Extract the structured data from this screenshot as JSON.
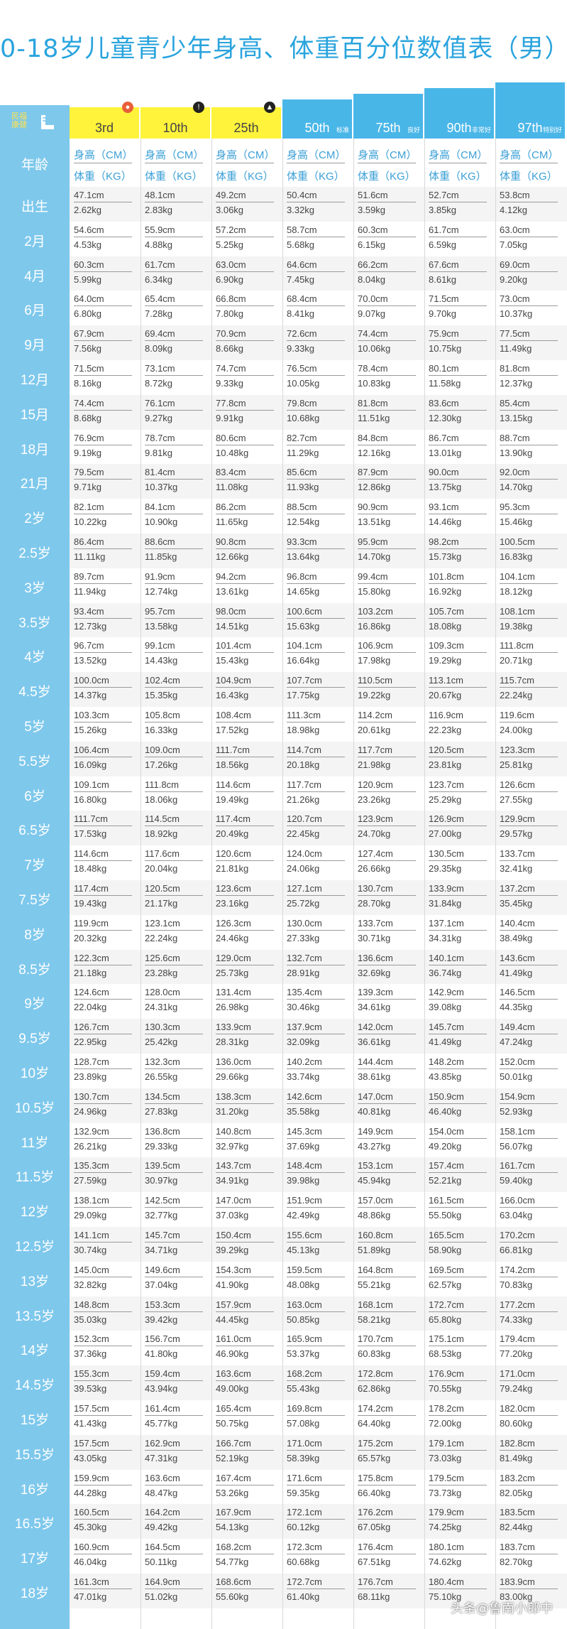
{
  "title": "0-18岁儿童青少年身高、体重百分位数值表（男）",
  "logo_text": [
    "民福",
    "康健"
  ],
  "columns": [
    {
      "label": "3rd",
      "tag": "",
      "color": "#fff33b"
    },
    {
      "label": "10th",
      "tag": "",
      "color": "#fff33b"
    },
    {
      "label": "25th",
      "tag": "",
      "color": "#fff33b"
    },
    {
      "label": "50th",
      "tag": "标准",
      "color": "#49b6e8"
    },
    {
      "label": "75th",
      "tag": "良好",
      "color": "#49b6e8"
    },
    {
      "label": "90th",
      "tag": "非常好",
      "color": "#49b6e8"
    },
    {
      "label": "97th",
      "tag": "特别好",
      "color": "#49b6e8"
    }
  ],
  "age_header": "年龄",
  "unit_height": "身高（CM）",
  "unit_weight": "体重（KG）",
  "rows": [
    {
      "age": "出生",
      "h": [
        "47.1cm",
        "48.1cm",
        "49.2cm",
        "50.4cm",
        "51.6cm",
        "52.7cm",
        "53.8cm"
      ],
      "w": [
        "2.62kg",
        "2.83kg",
        "3.06kg",
        "3.32kg",
        "3.59kg",
        "3.85kg",
        "4.12kg"
      ]
    },
    {
      "age": "2月",
      "h": [
        "54.6cm",
        "55.9cm",
        "57.2cm",
        "58.7cm",
        "60.3cm",
        "61.7cm",
        "63.0cm"
      ],
      "w": [
        "4.53kg",
        "4.88kg",
        "5.25kg",
        "5.68kg",
        "6.15kg",
        "6.59kg",
        "7.05kg"
      ]
    },
    {
      "age": "4月",
      "h": [
        "60.3cm",
        "61.7cm",
        "63.0cm",
        "64.6cm",
        "66.2cm",
        "67.6cm",
        "69.0cm"
      ],
      "w": [
        "5.99kg",
        "6.34kg",
        "6.90kg",
        "7.45kg",
        "8.04kg",
        "8.61kg",
        "9.20kg"
      ]
    },
    {
      "age": "6月",
      "h": [
        "64.0cm",
        "65.4cm",
        "66.8cm",
        "68.4cm",
        "70.0cm",
        "71.5cm",
        "73.0cm"
      ],
      "w": [
        "6.80kg",
        "7.28kg",
        "7.80kg",
        "8.41kg",
        "9.07kg",
        "9.70kg",
        "10.37kg"
      ]
    },
    {
      "age": "9月",
      "h": [
        "67.9cm",
        "69.4cm",
        "70.9cm",
        "72.6cm",
        "74.4cm",
        "75.9cm",
        "77.5cm"
      ],
      "w": [
        "7.56kg",
        "8.09kg",
        "8.66kg",
        "9.33kg",
        "10.06kg",
        "10.75kg",
        "11.49kg"
      ]
    },
    {
      "age": "12月",
      "h": [
        "71.5cm",
        "73.1cm",
        "74.7cm",
        "76.5cm",
        "78.4cm",
        "80.1cm",
        "81.8cm"
      ],
      "w": [
        "8.16kg",
        "8.72kg",
        "9.33kg",
        "10.05kg",
        "10.83kg",
        "11.58kg",
        "12.37kg"
      ]
    },
    {
      "age": "15月",
      "h": [
        "74.4cm",
        "76.1cm",
        "77.8cm",
        "79.8cm",
        "81.8cm",
        "83.6cm",
        "85.4cm"
      ],
      "w": [
        "8.68kg",
        "9.27kg",
        "9.91kg",
        "10.68kg",
        "11.51kg",
        "12.30kg",
        "13.15kg"
      ]
    },
    {
      "age": "18月",
      "h": [
        "76.9cm",
        "78.7cm",
        "80.6cm",
        "82.7cm",
        "84.8cm",
        "86.7cm",
        "88.7cm"
      ],
      "w": [
        "9.19kg",
        "9.81kg",
        "10.48kg",
        "11.29kg",
        "12.16kg",
        "13.01kg",
        "13.90kg"
      ]
    },
    {
      "age": "21月",
      "h": [
        "79.5cm",
        "81.4cm",
        "83.4cm",
        "85.6cm",
        "87.9cm",
        "90.0cm",
        "92.0cm"
      ],
      "w": [
        "9.71kg",
        "10.37kg",
        "11.08kg",
        "11.93kg",
        "12.86kg",
        "13.75kg",
        "14.70kg"
      ]
    },
    {
      "age": "2岁",
      "h": [
        "82.1cm",
        "84.1cm",
        "86.2cm",
        "88.5cm",
        "90.9cm",
        "93.1cm",
        "95.3cm"
      ],
      "w": [
        "10.22kg",
        "10.90kg",
        "11.65kg",
        "12.54kg",
        "13.51kg",
        "14.46kg",
        "15.46kg"
      ]
    },
    {
      "age": "2.5岁",
      "h": [
        "86.4cm",
        "88.6cm",
        "90.8cm",
        "93.3cm",
        "95.9cm",
        "98.2cm",
        "100.5cm"
      ],
      "w": [
        "11.11kg",
        "11.85kg",
        "12.66kg",
        "13.64kg",
        "14.70kg",
        "15.73kg",
        "16.83kg"
      ]
    },
    {
      "age": "3岁",
      "h": [
        "89.7cm",
        "91.9cm",
        "94.2cm",
        "96.8cm",
        "99.4cm",
        "101.8cm",
        "104.1cm"
      ],
      "w": [
        "11.94kg",
        "12.74kg",
        "13.61kg",
        "14.65kg",
        "15.80kg",
        "16.92kg",
        "18.12kg"
      ]
    },
    {
      "age": "3.5岁",
      "h": [
        "93.4cm",
        "95.7cm",
        "98.0cm",
        "100.6cm",
        "103.2cm",
        "105.7cm",
        "108.1cm"
      ],
      "w": [
        "12.73kg",
        "13.58kg",
        "14.51kg",
        "15.63kg",
        "16.86kg",
        "18.08kg",
        "19.38kg"
      ]
    },
    {
      "age": "4岁",
      "h": [
        "96.7cm",
        "99.1cm",
        "101.4cm",
        "104.1cm",
        "106.9cm",
        "109.3cm",
        "111.8cm"
      ],
      "w": [
        "13.52kg",
        "14.43kg",
        "15.43kg",
        "16.64kg",
        "17.98kg",
        "19.29kg",
        "20.71kg"
      ]
    },
    {
      "age": "4.5岁",
      "h": [
        "100.0cm",
        "102.4cm",
        "104.9cm",
        "107.7cm",
        "110.5cm",
        "113.1cm",
        "115.7cm"
      ],
      "w": [
        "14.37kg",
        "15.35kg",
        "16.43kg",
        "17.75kg",
        "19.22kg",
        "20.67kg",
        "22.24kg"
      ]
    },
    {
      "age": "5岁",
      "h": [
        "103.3cm",
        "105.8cm",
        "108.4cm",
        "111.3cm",
        "114.2cm",
        "116.9cm",
        "119.6cm"
      ],
      "w": [
        "15.26kg",
        "16.33kg",
        "17.52kg",
        "18.98kg",
        "20.61kg",
        "22.23kg",
        "24.00kg"
      ]
    },
    {
      "age": "5.5岁",
      "h": [
        "106.4cm",
        "109.0cm",
        "111.7cm",
        "114.7cm",
        "117.7cm",
        "120.5cm",
        "123.3cm"
      ],
      "w": [
        "16.09kg",
        "17.26kg",
        "18.56kg",
        "20.18kg",
        "21.98kg",
        "23.81kg",
        "25.81kg"
      ]
    },
    {
      "age": "6岁",
      "h": [
        "109.1cm",
        "111.8cm",
        "114.6cm",
        "117.7cm",
        "120.9cm",
        "123.7cm",
        "126.6cm"
      ],
      "w": [
        "16.80kg",
        "18.06kg",
        "19.49kg",
        "21.26kg",
        "23.26kg",
        "25.29kg",
        "27.55kg"
      ]
    },
    {
      "age": "6.5岁",
      "h": [
        "111.7cm",
        "114.5cm",
        "117.4cm",
        "120.7cm",
        "123.9cm",
        "126.9cm",
        "129.9cm"
      ],
      "w": [
        "17.53kg",
        "18.92kg",
        "20.49kg",
        "22.45kg",
        "24.70kg",
        "27.00kg",
        "29.57kg"
      ]
    },
    {
      "age": "7岁",
      "h": [
        "114.6cm",
        "117.6cm",
        "120.6cm",
        "124.0cm",
        "127.4cm",
        "130.5cm",
        "133.7cm"
      ],
      "w": [
        "18.48kg",
        "20.04kg",
        "21.81kg",
        "24.06kg",
        "26.66kg",
        "29.35kg",
        "32.41kg"
      ]
    },
    {
      "age": "7.5岁",
      "h": [
        "117.4cm",
        "120.5cm",
        "123.6cm",
        "127.1cm",
        "130.7cm",
        "133.9cm",
        "137.2cm"
      ],
      "w": [
        "19.43kg",
        "21.17kg",
        "23.16kg",
        "25.72kg",
        "28.70kg",
        "31.84kg",
        "35.45kg"
      ]
    },
    {
      "age": "8岁",
      "h": [
        "119.9cm",
        "123.1cm",
        "126.3cm",
        "130.0cm",
        "133.7cm",
        "137.1cm",
        "140.4cm"
      ],
      "w": [
        "20.32kg",
        "22.24kg",
        "24.46kg",
        "27.33kg",
        "30.71kg",
        "34.31kg",
        "38.49kg"
      ]
    },
    {
      "age": "8.5岁",
      "h": [
        "122.3cm",
        "125.6cm",
        "129.0cm",
        "132.7cm",
        "136.6cm",
        "140.1cm",
        "143.6cm"
      ],
      "w": [
        "21.18kg",
        "23.28kg",
        "25.73kg",
        "28.91kg",
        "32.69kg",
        "36.74kg",
        "41.49kg"
      ]
    },
    {
      "age": "9岁",
      "h": [
        "124.6cm",
        "128.0cm",
        "131.4cm",
        "135.4cm",
        "139.3cm",
        "142.9cm",
        "146.5cm"
      ],
      "w": [
        "22.04kg",
        "24.31kg",
        "26.98kg",
        "30.46kg",
        "34.61kg",
        "39.08kg",
        "44.35kg"
      ]
    },
    {
      "age": "9.5岁",
      "h": [
        "126.7cm",
        "130.3cm",
        "133.9cm",
        "137.9cm",
        "142.0cm",
        "145.7cm",
        "149.4cm"
      ],
      "w": [
        "22.95kg",
        "25.42kg",
        "28.31kg",
        "32.09kg",
        "36.61kg",
        "41.49kg",
        "47.24kg"
      ]
    },
    {
      "age": "10岁",
      "h": [
        "128.7cm",
        "132.3cm",
        "136.0cm",
        "140.2cm",
        "144.4cm",
        "148.2cm",
        "152.0cm"
      ],
      "w": [
        "23.89kg",
        "26.55kg",
        "29.66kg",
        "33.74kg",
        "38.61kg",
        "43.85kg",
        "50.01kg"
      ]
    },
    {
      "age": "10.5岁",
      "h": [
        "130.7cm",
        "134.5cm",
        "138.3cm",
        "142.6cm",
        "147.0cm",
        "150.9cm",
        "154.9cm"
      ],
      "w": [
        "24.96kg",
        "27.83kg",
        "31.20kg",
        "35.58kg",
        "40.81kg",
        "46.40kg",
        "52.93kg"
      ]
    },
    {
      "age": "11岁",
      "h": [
        "132.9cm",
        "136.8cm",
        "140.8cm",
        "145.3cm",
        "149.9cm",
        "154.0cm",
        "158.1cm"
      ],
      "w": [
        "26.21kg",
        "29.33kg",
        "32.97kg",
        "37.69kg",
        "43.27kg",
        "49.20kg",
        "56.07kg"
      ]
    },
    {
      "age": "11.5岁",
      "h": [
        "135.3cm",
        "139.5cm",
        "143.7cm",
        "148.4cm",
        "153.1cm",
        "157.4cm",
        "161.7cm"
      ],
      "w": [
        "27.59kg",
        "30.97kg",
        "34.91kg",
        "39.98kg",
        "45.94kg",
        "52.21kg",
        "59.40kg"
      ]
    },
    {
      "age": "12岁",
      "h": [
        "138.1cm",
        "142.5cm",
        "147.0cm",
        "151.9cm",
        "157.0cm",
        "161.5cm",
        "166.0cm"
      ],
      "w": [
        "29.09kg",
        "32.77kg",
        "37.03kg",
        "42.49kg",
        "48.86kg",
        "55.50kg",
        "63.04kg"
      ]
    },
    {
      "age": "12.5岁",
      "h": [
        "141.1cm",
        "145.7cm",
        "150.4cm",
        "155.6cm",
        "160.8cm",
        "165.5cm",
        "170.2cm"
      ],
      "w": [
        "30.74kg",
        "34.71kg",
        "39.29kg",
        "45.13kg",
        "51.89kg",
        "58.90kg",
        "66.81kg"
      ]
    },
    {
      "age": "13岁",
      "h": [
        "145.0cm",
        "149.6cm",
        "154.3cm",
        "159.5cm",
        "164.8cm",
        "169.5cm",
        "174.2cm"
      ],
      "w": [
        "32.82kg",
        "37.04kg",
        "41.90kg",
        "48.08kg",
        "55.21kg",
        "62.57kg",
        "70.83kg"
      ]
    },
    {
      "age": "13.5岁",
      "h": [
        "148.8cm",
        "153.3cm",
        "157.9cm",
        "163.0cm",
        "168.1cm",
        "172.7cm",
        "177.2cm"
      ],
      "w": [
        "35.03kg",
        "39.42kg",
        "44.45kg",
        "50.85kg",
        "58.21kg",
        "65.80kg",
        "74.33kg"
      ]
    },
    {
      "age": "14岁",
      "h": [
        "152.3cm",
        "156.7cm",
        "161.0cm",
        "165.9cm",
        "170.7cm",
        "175.1cm",
        "179.4cm"
      ],
      "w": [
        "37.36kg",
        "41.80kg",
        "46.90kg",
        "53.37kg",
        "60.83kg",
        "68.53kg",
        "77.20kg"
      ]
    },
    {
      "age": "14.5岁",
      "h": [
        "155.3cm",
        "159.4cm",
        "163.6cm",
        "168.2cm",
        "172.8cm",
        "176.9cm",
        "171.0cm"
      ],
      "w": [
        "39.53kg",
        "43.94kg",
        "49.00kg",
        "55.43kg",
        "62.86kg",
        "70.55kg",
        "79.24kg"
      ]
    },
    {
      "age": "15岁",
      "h": [
        "157.5cm",
        "161.4cm",
        "165.4cm",
        "169.8cm",
        "174.2cm",
        "178.2cm",
        "182.0cm"
      ],
      "w": [
        "41.43kg",
        "45.77kg",
        "50.75kg",
        "57.08kg",
        "64.40kg",
        "72.00kg",
        "80.60kg"
      ]
    },
    {
      "age": "15.5岁",
      "h": [
        "157.5cm",
        "162.9cm",
        "166.7cm",
        "171.0cm",
        "175.2cm",
        "179.1cm",
        "182.8cm"
      ],
      "w": [
        "43.05kg",
        "47.31kg",
        "52.19kg",
        "58.39kg",
        "65.57kg",
        "73.03kg",
        "81.49kg"
      ]
    },
    {
      "age": "16岁",
      "h": [
        "159.9cm",
        "163.6cm",
        "167.4cm",
        "171.6cm",
        "175.8cm",
        "179.5cm",
        "183.2cm"
      ],
      "w": [
        "44.28kg",
        "48.47kg",
        "53.26kg",
        "59.35kg",
        "66.40kg",
        "73.73kg",
        "82.05kg"
      ]
    },
    {
      "age": "16.5岁",
      "h": [
        "160.5cm",
        "164.2cm",
        "167.9cm",
        "172.1cm",
        "176.2cm",
        "179.9cm",
        "183.5cm"
      ],
      "w": [
        "45.30kg",
        "49.42kg",
        "54.13kg",
        "60.12kg",
        "67.05kg",
        "74.25kg",
        "82.44kg"
      ]
    },
    {
      "age": "17岁",
      "h": [
        "160.9cm",
        "164.5cm",
        "168.2cm",
        "172.3cm",
        "176.4cm",
        "180.1cm",
        "183.7cm"
      ],
      "w": [
        "46.04kg",
        "50.11kg",
        "54.77kg",
        "60.68kg",
        "67.51kg",
        "74.62kg",
        "82.70kg"
      ]
    },
    {
      "age": "18岁",
      "h": [
        "161.3cm",
        "164.9cm",
        "168.6cm",
        "172.7cm",
        "176.7cm",
        "180.4cm",
        "183.9cm"
      ],
      "w": [
        "47.01kg",
        "51.02kg",
        "55.60kg",
        "61.40kg",
        "68.11kg",
        "75.10kg",
        "83.00kg"
      ]
    }
  ],
  "watermark": "头条@鲁南小郎中"
}
